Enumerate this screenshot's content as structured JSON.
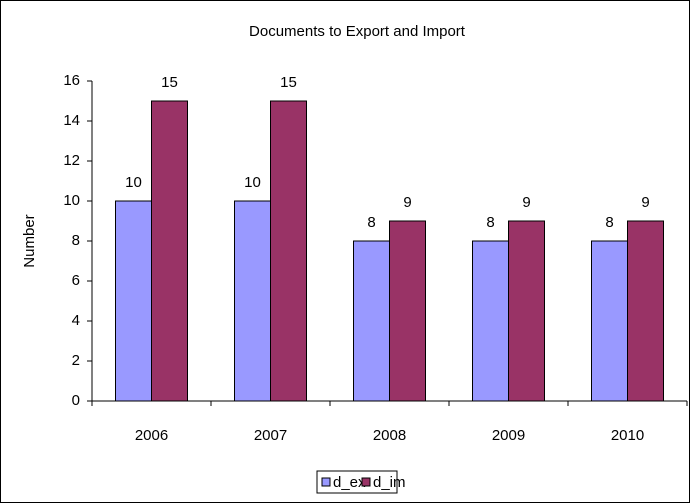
{
  "chart_data": {
    "type": "bar",
    "title": "Documents to Export and Import",
    "ylabel": "Number",
    "categories": [
      "2006",
      "2007",
      "2008",
      "2009",
      "2010"
    ],
    "series": [
      {
        "name": "d_ex",
        "color": "#9999ff",
        "values": [
          10,
          10,
          8,
          8,
          8
        ]
      },
      {
        "name": "d_im",
        "color": "#993366",
        "values": [
          15,
          15,
          9,
          9,
          9
        ]
      }
    ],
    "ylim": [
      0,
      16
    ],
    "yticks": [
      0,
      2,
      4,
      6,
      8,
      10,
      12,
      14,
      16
    ],
    "grid": false,
    "legend": "bottom"
  }
}
